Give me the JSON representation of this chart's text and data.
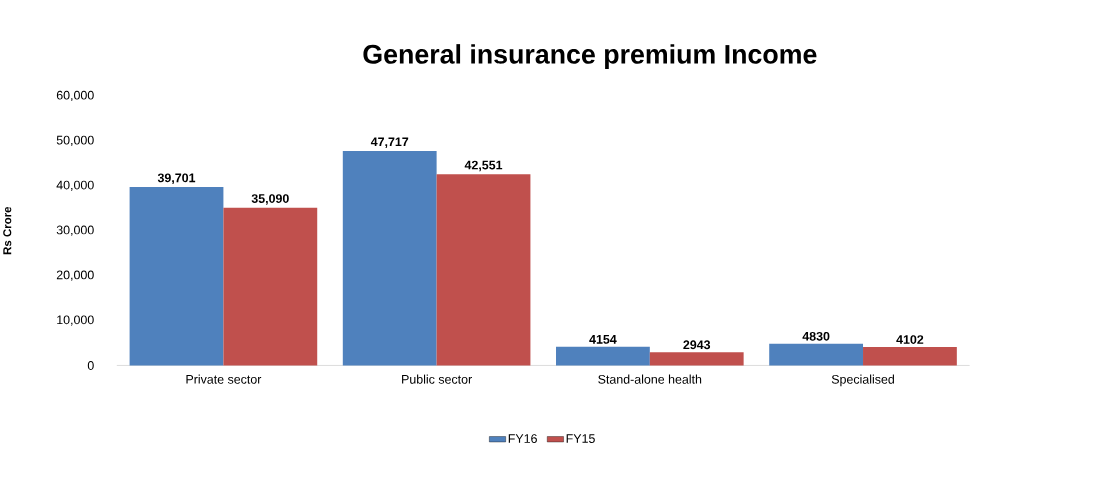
{
  "chart_data": {
    "type": "bar",
    "title": "General insurance premium Income",
    "ylabel": "Rs Crore",
    "categories": [
      "Private sector",
      "Public sector",
      "Stand-alone health",
      "Specialised"
    ],
    "series": [
      {
        "name": "FY16",
        "color": "#4f81bd",
        "values": [
          39701,
          47717,
          4154,
          4830
        ],
        "value_labels": [
          "39,701",
          "47,717",
          "4154",
          "4830"
        ]
      },
      {
        "name": "FY15",
        "color": "#c0504d",
        "values": [
          35090,
          42551,
          2943,
          4102
        ],
        "value_labels": [
          "35,090",
          "42,551",
          "2943",
          "4102"
        ]
      }
    ],
    "ylim": [
      0,
      60000
    ],
    "yticks": [
      0,
      {
        "value": 10000,
        "label": "10,000"
      },
      {
        "value": 20000,
        "label": "20,000"
      },
      {
        "value": 30000,
        "label": "30,000"
      },
      {
        "value": 40000,
        "label": "40,000"
      },
      {
        "value": 50000,
        "label": "50,000"
      },
      {
        "value": 60000,
        "label": "60,000"
      }
    ],
    "legend": "bottom"
  }
}
